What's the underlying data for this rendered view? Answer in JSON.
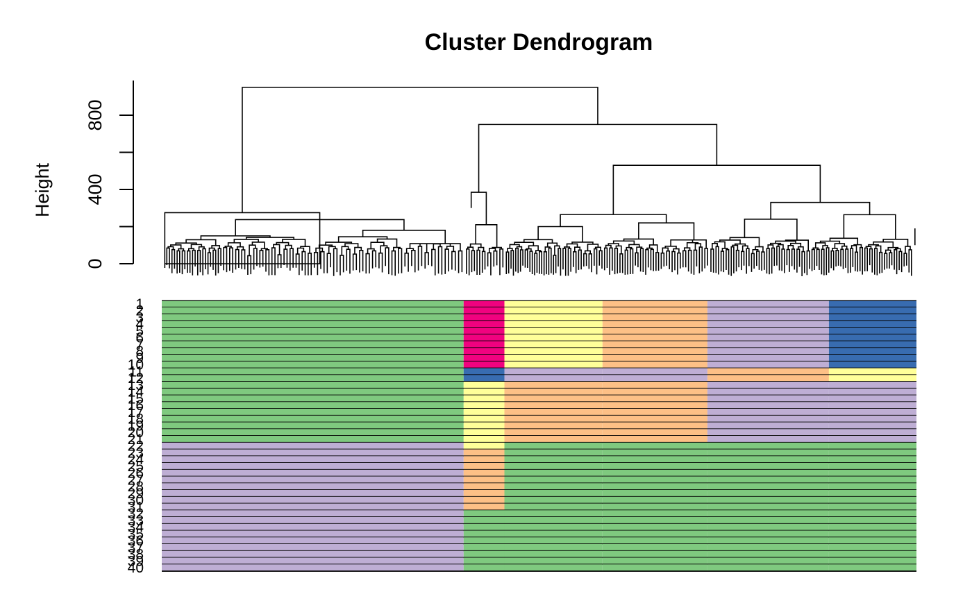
{
  "chart_data": {
    "type": "heatmap",
    "title": "Cluster Dendrogram",
    "ylabel": "Height",
    "ylim": [
      0,
      1000
    ],
    "yticks": [
      0,
      400,
      800
    ],
    "colors": {
      "green": "#7fc97f",
      "purple": "#beaed4",
      "orange": "#fdc086",
      "yellow": "#ffff99",
      "blue": "#386cb0",
      "pink": "#f0027f"
    },
    "dendrogram": {
      "top_split_height": 950,
      "subcluster_heights": [
        275,
        750,
        530,
        385,
        265,
        330,
        240,
        180
      ],
      "leaf_extent": [
        0.0,
        1.0
      ]
    },
    "row_labels": [
      "1",
      "2",
      "3",
      "4",
      "5",
      "6",
      "7",
      "8",
      "9",
      "10",
      "11",
      "12",
      "13",
      "14",
      "15",
      "16",
      "17",
      "18",
      "19",
      "20",
      "21",
      "22",
      "23",
      "24",
      "25",
      "26",
      "27",
      "28",
      "29",
      "30",
      "31",
      "32",
      "33",
      "34",
      "35",
      "36",
      "37",
      "38",
      "39",
      "40"
    ],
    "column_groups": [
      {
        "start": 0.0,
        "end": 0.4
      },
      {
        "start": 0.4,
        "end": 0.454
      },
      {
        "start": 0.454,
        "end": 0.584
      },
      {
        "start": 0.584,
        "end": 0.723
      },
      {
        "start": 0.723,
        "end": 0.884
      },
      {
        "start": 0.884,
        "end": 1.0
      }
    ],
    "row_color_segments": [
      {
        "rows": [
          1,
          10
        ],
        "colors": [
          "green",
          "pink",
          "yellow",
          "orange",
          "purple",
          "blue"
        ]
      },
      {
        "rows": [
          11,
          12
        ],
        "colors": [
          "green",
          "blue",
          "purple",
          "purple",
          "orange",
          "yellow"
        ]
      },
      {
        "rows": [
          13,
          21
        ],
        "colors": [
          "green",
          "yellow",
          "orange",
          "orange",
          "purple",
          "purple"
        ]
      },
      {
        "rows": [
          22,
          22
        ],
        "colors": [
          "purple",
          "yellow",
          "green",
          "green",
          "green",
          "green"
        ]
      },
      {
        "rows": [
          23,
          31
        ],
        "colors": [
          "purple",
          "orange",
          "green",
          "green",
          "green",
          "green"
        ]
      },
      {
        "rows": [
          32,
          40
        ],
        "colors": [
          "purple",
          "green",
          "green",
          "green",
          "green",
          "green"
        ]
      }
    ]
  }
}
